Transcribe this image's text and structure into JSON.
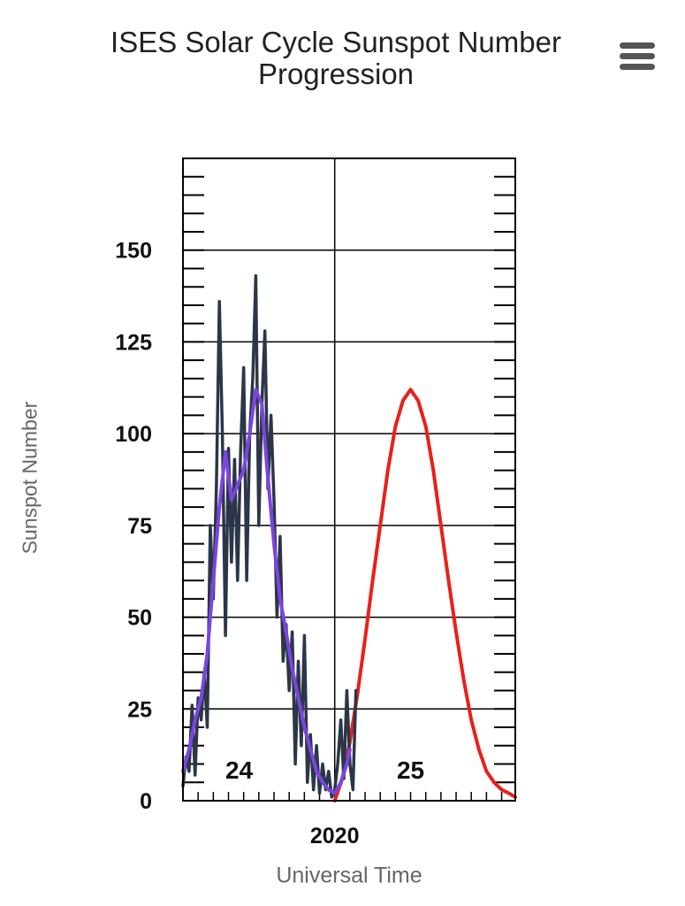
{
  "page": {
    "title_line1": "ISES Solar Cycle Sunspot Number",
    "title_line2": "Progression",
    "menu_icon": "hamburger-menu-icon"
  },
  "chart_data": {
    "type": "line",
    "title": "ISES Solar Cycle Sunspot Number Progression",
    "xlabel": "Universal Time",
    "ylabel": "Sunspot Number",
    "x_tick_labels": [
      {
        "label": "2020",
        "value": 2020
      }
    ],
    "y_ticks": [
      0,
      25,
      50,
      75,
      100,
      125,
      150
    ],
    "ylim": [
      0,
      175
    ],
    "xlim": [
      2010.0,
      2031.9
    ],
    "cycle_labels": [
      {
        "label": "24",
        "x": 2013.7,
        "y": 6
      },
      {
        "label": "25",
        "x": 2025.0,
        "y": 6
      }
    ],
    "colors": {
      "monthly": "#2b3648",
      "smoothed": "#7b45e0",
      "predicted": "#e8201a",
      "grid": "#000000"
    },
    "series": [
      {
        "key": "monthly",
        "x": [
          2010.0,
          2010.2,
          2010.4,
          2010.6,
          2010.8,
          2011.0,
          2011.2,
          2011.4,
          2011.6,
          2011.8,
          2012.0,
          2012.2,
          2012.4,
          2012.6,
          2012.8,
          2013.0,
          2013.2,
          2013.4,
          2013.6,
          2013.8,
          2014.0,
          2014.2,
          2014.4,
          2014.6,
          2014.8,
          2015.0,
          2015.2,
          2015.4,
          2015.6,
          2015.8,
          2016.0,
          2016.2,
          2016.4,
          2016.6,
          2016.8,
          2017.0,
          2017.2,
          2017.4,
          2017.6,
          2017.8,
          2018.0,
          2018.2,
          2018.4,
          2018.6,
          2018.8,
          2019.0,
          2019.2,
          2019.4,
          2019.6,
          2019.8,
          2020.0,
          2020.2,
          2020.4,
          2020.6,
          2020.8,
          2021.0,
          2021.2,
          2021.4
        ],
        "y": [
          4,
          12,
          8,
          26,
          7,
          28,
          22,
          35,
          20,
          75,
          55,
          85,
          136,
          100,
          45,
          96,
          65,
          93,
          60,
          95,
          118,
          60,
          100,
          115,
          143,
          75,
          108,
          128,
          85,
          105,
          82,
          50,
          72,
          38,
          48,
          30,
          46,
          10,
          38,
          15,
          45,
          5,
          18,
          3,
          15,
          2,
          10,
          3,
          8,
          1,
          3,
          10,
          22,
          6,
          30,
          10,
          3,
          30
        ],
        "name": ""
      },
      {
        "key": "smoothed",
        "x": [
          2010.0,
          2010.4,
          2010.8,
          2011.2,
          2011.6,
          2012.0,
          2012.4,
          2012.8,
          2013.2,
          2013.6,
          2014.0,
          2014.4,
          2014.8,
          2015.2,
          2015.6,
          2016.0,
          2016.4,
          2016.8,
          2017.2,
          2017.6,
          2018.0,
          2018.4,
          2018.8,
          2019.2,
          2019.6,
          2020.0,
          2020.4,
          2020.8,
          2021.0
        ],
        "y": [
          8,
          14,
          22,
          28,
          40,
          60,
          80,
          95,
          82,
          86,
          90,
          100,
          112,
          108,
          88,
          70,
          55,
          46,
          36,
          28,
          20,
          14,
          8,
          5,
          3,
          2,
          5,
          10,
          14
        ],
        "name": ""
      },
      {
        "key": "predicted",
        "x": [
          2020.0,
          2020.5,
          2021.0,
          2021.5,
          2022.0,
          2022.5,
          2023.0,
          2023.5,
          2024.0,
          2024.5,
          2025.0,
          2025.5,
          2026.0,
          2026.5,
          2027.0,
          2027.5,
          2028.0,
          2028.5,
          2029.0,
          2029.5,
          2030.0,
          2030.5,
          2031.0,
          2031.5,
          2031.9
        ],
        "y": [
          0,
          6,
          16,
          29,
          44,
          60,
          75,
          90,
          102,
          109,
          112,
          109,
          102,
          90,
          75,
          60,
          46,
          33,
          22,
          14,
          8,
          5,
          3,
          2,
          1
        ],
        "name": ""
      }
    ]
  }
}
